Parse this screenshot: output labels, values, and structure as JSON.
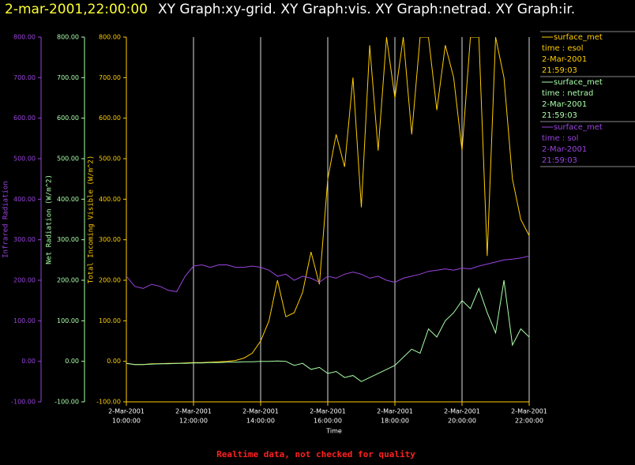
{
  "chart_data": {
    "type": "line",
    "title_time": "2-mar-2001,22:00:00",
    "title": "XY Graph:xy-grid.  XY Graph:vis.  XY Graph:netrad.  XY Graph:ir.",
    "xlabel": "Time",
    "footer": "Realtime data, not checked for quality",
    "grid": "x",
    "xlim": [
      "2001-03-02T10:00",
      "2001-03-02T22:00"
    ],
    "xticks": [
      {
        "value": "2001-03-02T10:00",
        "label": [
          "2-Mar-2001",
          "10:00:00"
        ]
      },
      {
        "value": "2001-03-02T12:00",
        "label": [
          "2-Mar-2001",
          "12:00:00"
        ]
      },
      {
        "value": "2001-03-02T14:00",
        "label": [
          "2-Mar-2001",
          "14:00:00"
        ]
      },
      {
        "value": "2001-03-02T16:00",
        "label": [
          "2-Mar-2001",
          "16:00:00"
        ]
      },
      {
        "value": "2001-03-02T18:00",
        "label": [
          "2-Mar-2001",
          "18:00:00"
        ]
      },
      {
        "value": "2001-03-02T20:00",
        "label": [
          "2-Mar-2001",
          "20:00:00"
        ]
      },
      {
        "value": "2001-03-02T22:00",
        "label": [
          "2-Mar-2001",
          "22:00:00"
        ]
      }
    ],
    "ylabel": "Total Incoming Visible (W/m^2)",
    "ylim": [
      -100,
      800
    ],
    "yticks": [
      {
        "value": -100,
        "label": "-100.00"
      },
      {
        "value": 0,
        "label": "0.00"
      },
      {
        "value": 100,
        "label": "100.00"
      },
      {
        "value": 200,
        "label": "200.00"
      },
      {
        "value": 300,
        "label": "300.00"
      },
      {
        "value": 400,
        "label": "400.00"
      },
      {
        "value": 500,
        "label": "500.00"
      },
      {
        "value": 600,
        "label": "600.00"
      },
      {
        "value": 700,
        "label": "700.00"
      },
      {
        "value": 800,
        "label": "800.00"
      }
    ],
    "y2label": "Net Radiation (W/m^2)",
    "y2lim": [
      -100,
      800
    ],
    "y2ticks": [
      {
        "value": -100,
        "label": "-100.00"
      },
      {
        "value": 0,
        "label": "0.00"
      },
      {
        "value": 100,
        "label": "100.00"
      },
      {
        "value": 200,
        "label": "200.00"
      },
      {
        "value": 300,
        "label": "300.00"
      },
      {
        "value": 400,
        "label": "400.00"
      },
      {
        "value": 500,
        "label": "500.00"
      },
      {
        "value": 600,
        "label": "600.00"
      },
      {
        "value": 700,
        "label": "700.00"
      },
      {
        "value": 800,
        "label": "800.00"
      }
    ],
    "y3label": "Infrared Radiation",
    "y3lim": [
      -100,
      800
    ],
    "y3ticks": [
      {
        "value": -100,
        "label": "-100.00"
      },
      {
        "value": 0,
        "label": "0.00"
      },
      {
        "value": 100,
        "label": "100.00"
      },
      {
        "value": 200,
        "label": "200.00"
      },
      {
        "value": 300,
        "label": "300.00"
      },
      {
        "value": 400,
        "label": "400.00"
      },
      {
        "value": 500,
        "label": "500.00"
      },
      {
        "value": 600,
        "label": "600.00"
      },
      {
        "value": 700,
        "label": "700.00"
      },
      {
        "value": 800,
        "label": "800.00"
      }
    ],
    "x": [
      "2001-03-02T10:00",
      "2001-03-02T10:15",
      "2001-03-02T10:30",
      "2001-03-02T10:45",
      "2001-03-02T11:00",
      "2001-03-02T11:15",
      "2001-03-02T11:30",
      "2001-03-02T11:45",
      "2001-03-02T12:00",
      "2001-03-02T12:15",
      "2001-03-02T12:30",
      "2001-03-02T12:45",
      "2001-03-02T13:00",
      "2001-03-02T13:15",
      "2001-03-02T13:30",
      "2001-03-02T13:45",
      "2001-03-02T14:00",
      "2001-03-02T14:15",
      "2001-03-02T14:30",
      "2001-03-02T14:45",
      "2001-03-02T15:00",
      "2001-03-02T15:15",
      "2001-03-02T15:30",
      "2001-03-02T15:45",
      "2001-03-02T16:00",
      "2001-03-02T16:15",
      "2001-03-02T16:30",
      "2001-03-02T16:45",
      "2001-03-02T17:00",
      "2001-03-02T17:15",
      "2001-03-02T17:30",
      "2001-03-02T17:45",
      "2001-03-02T18:00",
      "2001-03-02T18:15",
      "2001-03-02T18:30",
      "2001-03-02T18:45",
      "2001-03-02T19:00",
      "2001-03-02T19:15",
      "2001-03-02T19:30",
      "2001-03-02T19:45",
      "2001-03-02T20:00",
      "2001-03-02T20:15",
      "2001-03-02T20:30",
      "2001-03-02T20:45",
      "2001-03-02T21:00",
      "2001-03-02T21:15",
      "2001-03-02T21:30",
      "2001-03-02T21:45",
      "2001-03-02T22:00"
    ],
    "series": [
      {
        "name": "surface_met",
        "variable": "time : esol",
        "date": "2-Mar-2001",
        "time": "21:59:03",
        "color": "#ffcc00",
        "axis": "y",
        "values": [
          -5,
          -8,
          -8,
          -6,
          -6,
          -5,
          -5,
          -4,
          -3,
          -3,
          -2,
          -1,
          0,
          2,
          8,
          20,
          50,
          100,
          200,
          110,
          120,
          170,
          270,
          190,
          450,
          560,
          480,
          700,
          380,
          780,
          520,
          800,
          650,
          800,
          560,
          800,
          800,
          620,
          780,
          700,
          520,
          800,
          800,
          260,
          800,
          700,
          450,
          350,
          310
        ]
      },
      {
        "name": "surface_met",
        "variable": "time : netrad",
        "date": "2-Mar-2001",
        "time": "21:59:03",
        "color": "#aaffaa",
        "axis": "y2",
        "values": [
          -5,
          -8,
          -8,
          -7,
          -6,
          -6,
          -5,
          -5,
          -4,
          -4,
          -3,
          -3,
          -2,
          -2,
          -1,
          -1,
          0,
          0,
          1,
          0,
          -10,
          -5,
          -20,
          -15,
          -30,
          -25,
          -40,
          -35,
          -50,
          -40,
          -30,
          -20,
          -10,
          10,
          30,
          20,
          80,
          60,
          100,
          120,
          150,
          130,
          180,
          120,
          70,
          200,
          40,
          80,
          60
        ]
      },
      {
        "name": "surface_met",
        "variable": "time : sol",
        "date": "2-Mar-2001",
        "time": "21:59:03",
        "color": "#9944dd",
        "axis": "y3",
        "values": [
          210,
          185,
          180,
          190,
          185,
          175,
          172,
          210,
          235,
          238,
          232,
          238,
          238,
          232,
          232,
          235,
          232,
          225,
          210,
          215,
          200,
          210,
          205,
          195,
          210,
          205,
          215,
          220,
          215,
          205,
          210,
          200,
          195,
          205,
          210,
          215,
          222,
          225,
          228,
          225,
          230,
          228,
          235,
          240,
          245,
          250,
          252,
          255,
          260
        ]
      }
    ]
  }
}
